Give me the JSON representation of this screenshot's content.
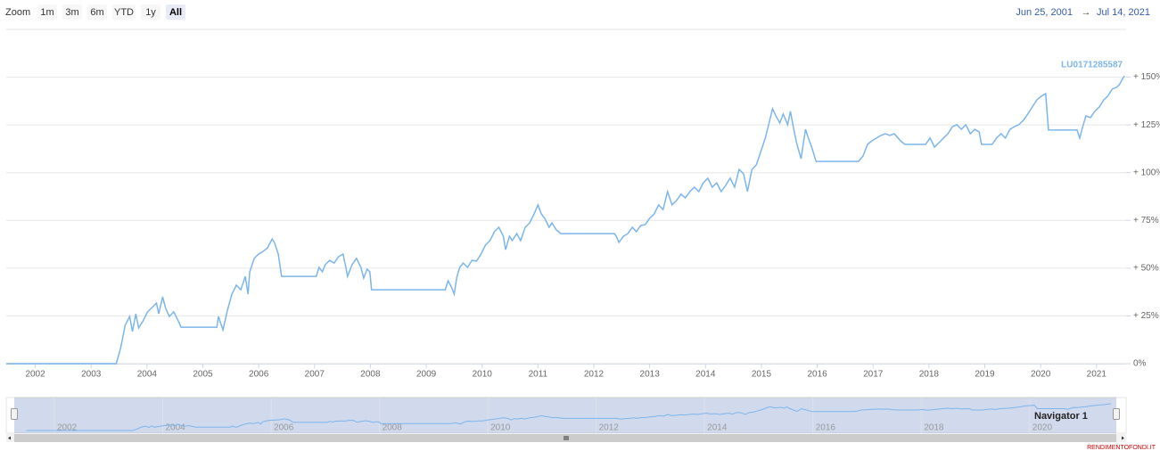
{
  "range_selector": {
    "label": "Zoom",
    "buttons": [
      "1m",
      "3m",
      "6m",
      "YTD",
      "1y",
      "All"
    ],
    "selected_index": 5
  },
  "date_range": {
    "from": "Jun 25, 2001",
    "arrow": "→",
    "to": "Jul 14, 2021"
  },
  "chart_data": {
    "type": "line",
    "x": [
      2001.48,
      2003.45,
      2003.53,
      2003.61,
      2003.69,
      2003.74,
      2003.8,
      2003.85,
      2003.93,
      2004.01,
      2004.09,
      2004.17,
      2004.21,
      2004.28,
      2004.33,
      2004.4,
      2004.48,
      2004.56,
      2004.61,
      2005.25,
      2005.28,
      2005.36,
      2005.44,
      2005.52,
      2005.6,
      2005.68,
      2005.76,
      2005.81,
      2005.84,
      2005.92,
      2006.0,
      2006.08,
      2006.16,
      2006.24,
      2006.28,
      2006.35,
      2006.41,
      2007.03,
      2007.08,
      2007.14,
      2007.19,
      2007.27,
      2007.35,
      2007.43,
      2007.51,
      2007.56,
      2007.59,
      2007.67,
      2007.75,
      2007.83,
      2007.88,
      2007.94,
      2007.99,
      2008.02,
      2009.34,
      2009.39,
      2009.45,
      2009.5,
      2009.55,
      2009.6,
      2009.66,
      2009.74,
      2009.82,
      2009.9,
      2009.98,
      2010.06,
      2010.14,
      2010.22,
      2010.3,
      2010.38,
      2010.42,
      2010.49,
      2010.54,
      2010.62,
      2010.69,
      2010.77,
      2010.85,
      2010.93,
      2011.0,
      2011.06,
      2011.12,
      2011.2,
      2011.25,
      2011.33,
      2011.41,
      2012.37,
      2012.4,
      2012.45,
      2012.53,
      2012.61,
      2012.69,
      2012.76,
      2012.84,
      2012.92,
      2013.0,
      2013.08,
      2013.16,
      2013.24,
      2013.32,
      2013.4,
      2013.48,
      2013.56,
      2013.64,
      2013.72,
      2013.8,
      2013.88,
      2013.96,
      2014.04,
      2014.12,
      2014.2,
      2014.28,
      2014.36,
      2014.44,
      2014.52,
      2014.6,
      2014.68,
      2014.75,
      2014.83,
      2014.91,
      2014.99,
      2015.07,
      2015.15,
      2015.2,
      2015.26,
      2015.33,
      2015.39,
      2015.47,
      2015.52,
      2015.58,
      2015.63,
      2015.71,
      2015.79,
      2015.84,
      2015.9,
      2015.98,
      2016.74,
      2016.82,
      2016.9,
      2016.98,
      2017.06,
      2017.14,
      2017.22,
      2017.3,
      2017.38,
      2017.49,
      2017.57,
      2017.94,
      2018.02,
      2018.1,
      2018.18,
      2018.26,
      2018.34,
      2018.42,
      2018.5,
      2018.58,
      2018.66,
      2018.74,
      2018.82,
      2018.9,
      2018.94,
      2019.13,
      2019.21,
      2019.29,
      2019.37,
      2019.45,
      2019.53,
      2019.61,
      2019.69,
      2019.77,
      2019.85,
      2019.93,
      2020.01,
      2020.09,
      2020.14,
      2020.65,
      2020.7,
      2020.74,
      2020.81,
      2020.89,
      2020.97,
      2021.05,
      2021.13,
      2021.2,
      2021.28,
      2021.36,
      2021.41,
      2021.47,
      2021.5
    ],
    "series": [
      {
        "name": "LU0171285587",
        "color": "#7cb5ec",
        "values": [
          0,
          0,
          8.4,
          20.1,
          24.7,
          16.8,
          26.1,
          18.7,
          22.4,
          27.1,
          29.4,
          31.7,
          26.1,
          35.0,
          29.4,
          24.7,
          27.1,
          22.4,
          19.1,
          19.1,
          24.7,
          17.7,
          28.0,
          36.4,
          41.1,
          38.7,
          45.7,
          36.4,
          48.1,
          55.1,
          57.4,
          58.8,
          60.7,
          65.3,
          63.5,
          57.4,
          45.7,
          45.7,
          50.4,
          48.1,
          51.8,
          54.1,
          52.7,
          56.0,
          57.4,
          50.4,
          45.7,
          51.8,
          55.1,
          50.4,
          44.8,
          49.5,
          48.1,
          38.7,
          38.7,
          43.4,
          40.1,
          36.4,
          45.7,
          50.4,
          52.7,
          50.4,
          54.1,
          53.7,
          57.4,
          62.1,
          64.4,
          69.1,
          71.4,
          66.7,
          59.7,
          66.7,
          64.4,
          68.1,
          64.4,
          71.4,
          73.7,
          78.4,
          83.1,
          78.4,
          76.1,
          71.4,
          73.7,
          70.0,
          68.1,
          68.1,
          66.7,
          63.5,
          66.7,
          68.1,
          71.4,
          69.1,
          72.3,
          72.8,
          76.1,
          78.4,
          83.1,
          80.7,
          90.1,
          83.1,
          85.4,
          88.7,
          86.8,
          90.1,
          92.4,
          90.1,
          94.7,
          97.1,
          92.4,
          94.7,
          90.1,
          93.3,
          97.1,
          92.4,
          101.7,
          99.4,
          90.1,
          101.7,
          104.1,
          111.1,
          118.1,
          127.4,
          133.5,
          129.7,
          126.0,
          130.7,
          125.1,
          132.1,
          122.7,
          115.7,
          107.3,
          122.7,
          118.1,
          113.4,
          105.9,
          105.9,
          108.7,
          114.8,
          116.7,
          118.1,
          119.5,
          120.4,
          119.5,
          120.4,
          116.7,
          114.8,
          114.8,
          118.1,
          113.4,
          115.7,
          118.1,
          120.4,
          124.1,
          125.1,
          122.7,
          125.1,
          120.4,
          122.7,
          121.3,
          114.8,
          114.8,
          118.1,
          120.4,
          118.1,
          122.7,
          124.1,
          125.1,
          127.4,
          130.7,
          134.4,
          138.1,
          140.0,
          141.4,
          122.3,
          122.3,
          118.1,
          122.7,
          129.7,
          128.8,
          132.1,
          134.4,
          138.1,
          140.0,
          143.7,
          144.7,
          146.1,
          149.3,
          150.7
        ]
      }
    ],
    "xlim": [
      2001.48,
      2021.53
    ],
    "xticks": [
      2002,
      2003,
      2004,
      2005,
      2006,
      2007,
      2008,
      2009,
      2010,
      2011,
      2012,
      2013,
      2014,
      2015,
      2016,
      2017,
      2018,
      2019,
      2020,
      2021
    ],
    "ylim": [
      0,
      175
    ],
    "yticks": [
      {
        "value": 0,
        "label": "0%"
      },
      {
        "value": 25,
        "label": "+ 25%"
      },
      {
        "value": 50,
        "label": "+ 50%"
      },
      {
        "value": 75,
        "label": "+ 75%"
      },
      {
        "value": 100,
        "label": "+ 100%"
      },
      {
        "value": 125,
        "label": "+ 125%"
      },
      {
        "value": 150,
        "label": "+ 150%"
      }
    ],
    "grid": true
  },
  "navigator": {
    "label": "Navigator 1",
    "xlim": [
      2001.26,
      2021.6
    ],
    "xticks": [
      2002,
      2004,
      2006,
      2008,
      2010,
      2012,
      2014,
      2016,
      2018,
      2020
    ]
  },
  "credit": "RENDIMENTOFONDI.IT"
}
